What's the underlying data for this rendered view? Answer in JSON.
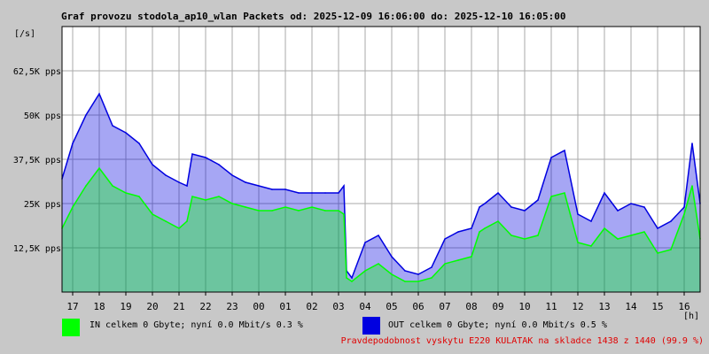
{
  "title": "Graf provozu stodola_ap10_wlan Packets od: 2025-12-09 16:06:00 do: 2025-12-10 16:05:00",
  "colors": {
    "in": "#00ff00",
    "out": "#0000e0",
    "grid": "#aaaaaa",
    "alert": "#e00000",
    "plot_bg": "#ffffff"
  },
  "legend": {
    "in": "IN celkem 0 Gbyte; nyní   0.0 Mbit/s 0.3 %",
    "out": "OUT celkem 0 Gbyte; nyní   0.0 Mbit/s 0.5 %"
  },
  "availability": "Pravdepodobnost vyskytu E220 KULATAK na skladce 1438 z 1440 (99.9 %)",
  "chart_data": {
    "type": "area",
    "ylabel": "[/s]",
    "xunit": "[h]",
    "ylim": [
      0,
      75000
    ],
    "xlim": [
      16.6,
      40.6
    ],
    "ytick_values": [
      12500,
      25000,
      37500,
      50000,
      62500
    ],
    "ytick_labels": [
      "12,5K pps",
      "25K pps",
      "37,5K pps",
      "50K pps",
      "62,5K pps"
    ],
    "xtick_values": [
      17,
      18,
      19,
      20,
      21,
      22,
      23,
      24,
      25,
      26,
      27,
      28,
      29,
      30,
      31,
      32,
      33,
      34,
      35,
      36,
      37,
      38,
      39,
      40
    ],
    "xtick_labels": [
      "17",
      "18",
      "19",
      "20",
      "21",
      "22",
      "23",
      "00",
      "01",
      "02",
      "03",
      "04",
      "05",
      "06",
      "07",
      "08",
      "09",
      "10",
      "11",
      "12",
      "13",
      "14",
      "15",
      "16"
    ],
    "grid": true,
    "series": [
      {
        "name": "IN",
        "color": "#00ff00",
        "x": [
          16.6,
          17,
          17.5,
          18,
          18.5,
          19,
          19.5,
          20,
          20.5,
          21,
          21.3,
          21.5,
          22,
          22.5,
          23,
          23.5,
          24,
          24.5,
          25,
          25.5,
          26,
          26.5,
          27,
          27.2,
          27.3,
          27.5,
          28,
          28.5,
          29,
          29.5,
          30,
          30.5,
          31,
          31.5,
          32,
          32.3,
          32.5,
          33,
          33.5,
          34,
          34.5,
          35,
          35.5,
          36,
          36.5,
          37,
          37.5,
          38,
          38.5,
          39,
          39.5,
          40,
          40.3,
          40.6
        ],
        "y": [
          18000,
          24000,
          30000,
          35000,
          30000,
          28000,
          27000,
          22000,
          20000,
          18000,
          20000,
          27000,
          26000,
          27000,
          25000,
          24000,
          23000,
          23000,
          24000,
          23000,
          24000,
          23000,
          23000,
          22000,
          4000,
          3000,
          6000,
          8000,
          5000,
          3000,
          3000,
          4000,
          8000,
          9000,
          10000,
          17000,
          18000,
          20000,
          16000,
          15000,
          16000,
          27000,
          28000,
          14000,
          13000,
          18000,
          15000,
          16000,
          17000,
          11000,
          12000,
          22000,
          30000,
          15000
        ]
      },
      {
        "name": "OUT",
        "color": "#0000e0",
        "x": [
          16.6,
          17,
          17.5,
          18,
          18.5,
          19,
          19.5,
          20,
          20.5,
          21,
          21.3,
          21.5,
          22,
          22.5,
          23,
          23.5,
          24,
          24.5,
          25,
          25.5,
          26,
          26.5,
          27,
          27.2,
          27.3,
          27.5,
          28,
          28.5,
          29,
          29.5,
          30,
          30.5,
          31,
          31.5,
          32,
          32.3,
          32.5,
          33,
          33.5,
          34,
          34.5,
          35,
          35.5,
          36,
          36.5,
          37,
          37.5,
          38,
          38.5,
          39,
          39.5,
          40,
          40.3,
          40.6
        ],
        "y": [
          32000,
          42000,
          50000,
          56000,
          47000,
          45000,
          42000,
          36000,
          33000,
          31000,
          30000,
          39000,
          38000,
          36000,
          33000,
          31000,
          30000,
          29000,
          29000,
          28000,
          28000,
          28000,
          28000,
          30000,
          6000,
          4000,
          14000,
          16000,
          10000,
          6000,
          5000,
          7000,
          15000,
          17000,
          18000,
          24000,
          25000,
          28000,
          24000,
          23000,
          26000,
          38000,
          40000,
          22000,
          20000,
          28000,
          23000,
          25000,
          24000,
          18000,
          20000,
          24000,
          42000,
          25000
        ]
      }
    ]
  }
}
